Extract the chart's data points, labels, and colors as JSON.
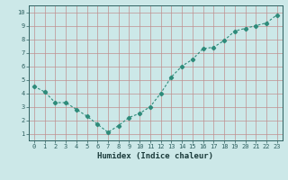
{
  "x": [
    0,
    1,
    2,
    3,
    4,
    5,
    6,
    7,
    8,
    9,
    10,
    11,
    12,
    13,
    14,
    15,
    16,
    17,
    18,
    19,
    20,
    21,
    22,
    23
  ],
  "y": [
    4.5,
    4.1,
    3.3,
    3.3,
    2.8,
    2.3,
    1.7,
    1.1,
    1.6,
    2.2,
    2.5,
    3.0,
    4.0,
    5.2,
    6.0,
    6.5,
    7.3,
    7.4,
    7.9,
    8.6,
    8.8,
    9.0,
    9.2,
    9.8
  ],
  "line_color": "#2e8b7a",
  "marker": "D",
  "marker_size": 2.2,
  "bg_color": "#cce8e8",
  "grid_color": "#c09090",
  "xlabel": "Humidex (Indice chaleur)",
  "xlim": [
    -0.5,
    23.5
  ],
  "ylim": [
    0.5,
    10.5
  ],
  "xticks": [
    0,
    1,
    2,
    3,
    4,
    5,
    6,
    7,
    8,
    9,
    10,
    11,
    12,
    13,
    14,
    15,
    16,
    17,
    18,
    19,
    20,
    21,
    22,
    23
  ],
  "yticks": [
    1,
    2,
    3,
    4,
    5,
    6,
    7,
    8,
    9,
    10
  ],
  "tick_color": "#2e6060",
  "label_color": "#1a3a3a",
  "font_family": "monospace",
  "tick_fontsize": 5.0,
  "xlabel_fontsize": 6.5
}
